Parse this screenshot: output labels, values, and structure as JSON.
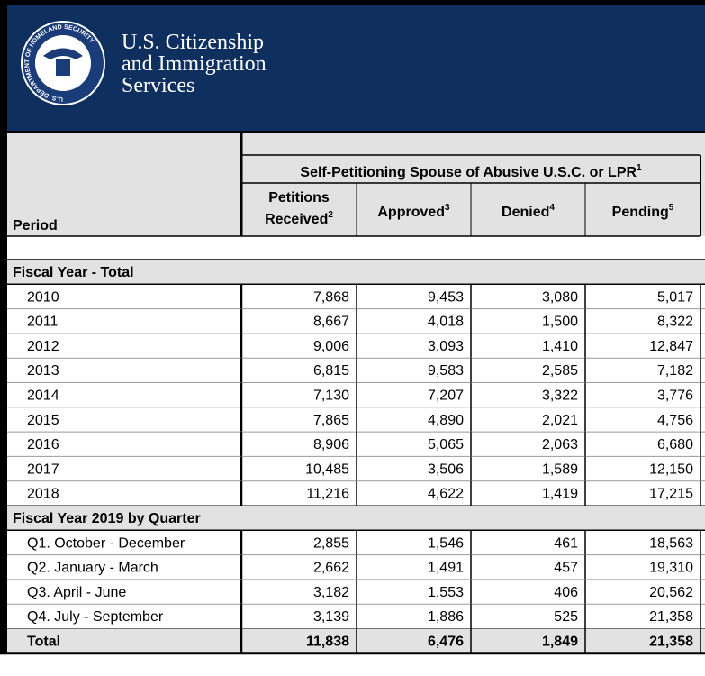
{
  "header": {
    "agency_lines": [
      "U.S. Citizenship",
      "and Immigration",
      "Services"
    ],
    "seal_text": "U.S. DEPARTMENT OF HOMELAND SECURITY"
  },
  "table": {
    "period_label": "Period",
    "group_header": {
      "label": "Self-Petitioning Spouse of Abusive U.S.C. or LPR",
      "note": "1"
    },
    "columns": [
      {
        "label_lines": [
          "Petitions",
          "Received"
        ],
        "note": "2"
      },
      {
        "label_lines": [
          "Approved"
        ],
        "note": "3"
      },
      {
        "label_lines": [
          "Denied"
        ],
        "note": "4"
      },
      {
        "label_lines": [
          "Pending"
        ],
        "note": "5"
      }
    ],
    "sections": [
      {
        "title": "Fiscal Year - Total",
        "rows": [
          [
            "2010",
            "7,868",
            "9,453",
            "3,080",
            "5,017"
          ],
          [
            "2011",
            "8,667",
            "4,018",
            "1,500",
            "8,322"
          ],
          [
            "2012",
            "9,006",
            "3,093",
            "1,410",
            "12,847"
          ],
          [
            "2013",
            "6,815",
            "9,583",
            "2,585",
            "7,182"
          ],
          [
            "2014",
            "7,130",
            "7,207",
            "3,322",
            "3,776"
          ],
          [
            "2015",
            "7,865",
            "4,890",
            "2,021",
            "4,756"
          ],
          [
            "2016",
            "8,906",
            "5,065",
            "2,063",
            "6,680"
          ],
          [
            "2017",
            "10,485",
            "3,506",
            "1,589",
            "12,150"
          ],
          [
            "2018",
            "11,216",
            "4,622",
            "1,419",
            "17,215"
          ]
        ]
      },
      {
        "title": "Fiscal Year 2019 by Quarter",
        "rows": [
          [
            "Q1. October - December",
            "2,855",
            "1,546",
            "461",
            "18,563"
          ],
          [
            "Q2. January - March",
            "2,662",
            "1,491",
            "457",
            "19,310"
          ],
          [
            "Q3. April - June",
            "3,182",
            "1,553",
            "406",
            "20,562"
          ],
          [
            "Q4. July - September",
            "3,139",
            "1,886",
            "525",
            "21,358"
          ]
        ]
      }
    ],
    "total": [
      "Total",
      "11,838",
      "6,476",
      "1,849",
      "21,358"
    ]
  }
}
